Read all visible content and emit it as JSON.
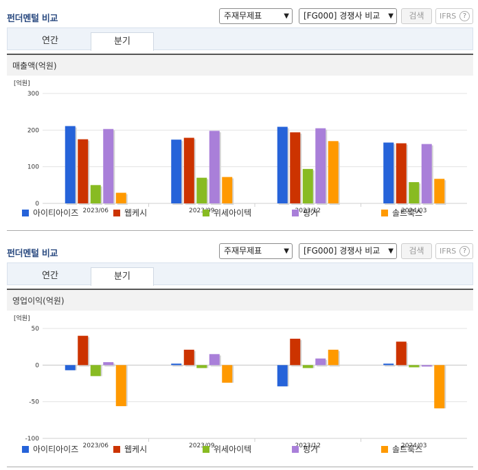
{
  "panels": [
    {
      "title": "펀더멘털 비교",
      "select_financial": "주재무제표",
      "select_compare": "[FG000] 경쟁사 비교",
      "search_label": "검색",
      "ifrs_label": "IFRS",
      "help_label": "?",
      "tabs": [
        "연간",
        "분기"
      ],
      "subtitle": "매출액(억원)",
      "unit_label": "[억원]"
    },
    {
      "title": "펀더멘털 비교",
      "select_financial": "주재무제표",
      "select_compare": "[FG000] 경쟁사 비교",
      "search_label": "검색",
      "ifrs_label": "IFRS",
      "help_label": "?",
      "tabs": [
        "연간",
        "분기"
      ],
      "subtitle": "영업이익(억원)",
      "unit_label": "[억원]"
    }
  ],
  "colors": {
    "series": [
      "#2663d9",
      "#cc3300",
      "#88bb22",
      "#a97fd9",
      "#ff9900"
    ],
    "title": "#2a4a80"
  },
  "chart_data": [
    {
      "type": "bar",
      "title": "매출액(억원)",
      "ylabel": "[억원]",
      "categories": [
        "2023/06",
        "2023/09",
        "2023/12",
        "2024/03"
      ],
      "ylim": [
        0,
        300
      ],
      "yticks": [
        0,
        100,
        200,
        300
      ],
      "series": [
        {
          "name": "아이티아이즈",
          "values": [
            211,
            174,
            209,
            166
          ]
        },
        {
          "name": "웹케시",
          "values": [
            175,
            179,
            194,
            164
          ]
        },
        {
          "name": "위세아이텍",
          "values": [
            50,
            70,
            94,
            58
          ]
        },
        {
          "name": "핑거",
          "values": [
            203,
            198,
            205,
            162
          ]
        },
        {
          "name": "솔트룩스",
          "values": [
            29,
            72,
            170,
            67
          ]
        }
      ],
      "grid": true,
      "legend": "bottom"
    },
    {
      "type": "bar",
      "title": "영업이익(억원)",
      "ylabel": "[억원]",
      "categories": [
        "2023/06",
        "2023/09",
        "2023/12",
        "2024/03"
      ],
      "ylim": [
        -100,
        50
      ],
      "yticks": [
        -100,
        -50,
        0,
        50
      ],
      "series": [
        {
          "name": "아이티아이즈",
          "values": [
            -7,
            2,
            -29,
            2
          ]
        },
        {
          "name": "웹케시",
          "values": [
            40,
            21,
            36,
            32
          ]
        },
        {
          "name": "위세아이텍",
          "values": [
            -15,
            -4,
            -4,
            -3
          ]
        },
        {
          "name": "핑거",
          "values": [
            4,
            15,
            9,
            -2
          ]
        },
        {
          "name": "솔트룩스",
          "values": [
            -56,
            -24,
            21,
            -59
          ]
        }
      ],
      "grid": true,
      "legend": "bottom"
    }
  ]
}
